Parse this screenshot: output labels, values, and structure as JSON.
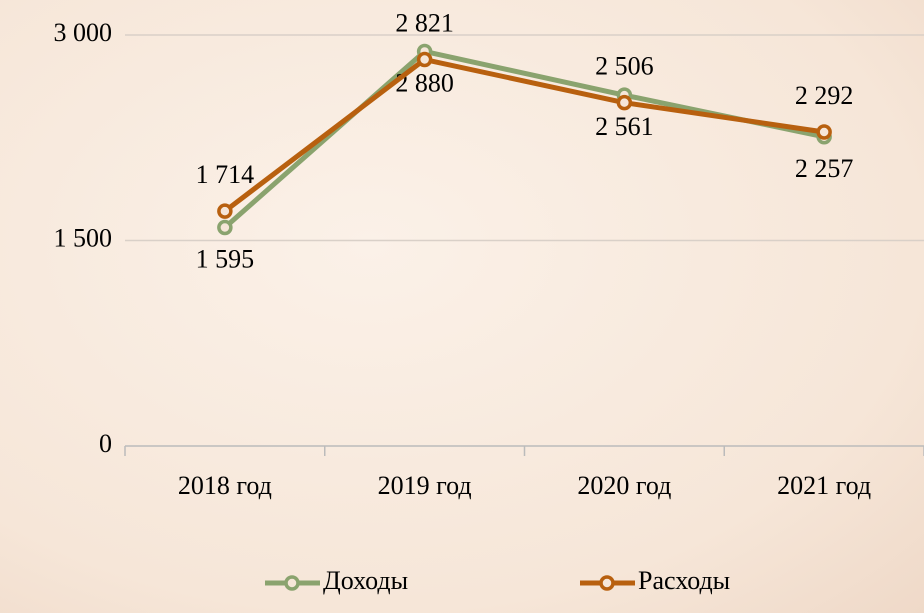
{
  "chart_data": {
    "type": "line",
    "categories": [
      "2018 год",
      "2019 год",
      "2020 год",
      "2021 год"
    ],
    "series": [
      {
        "name": "Доходы",
        "color": "#8aa36e",
        "values": [
          1595,
          2880,
          2561,
          2257
        ],
        "value_labels": [
          "1 595",
          "2 880",
          "2 561",
          "2 257"
        ]
      },
      {
        "name": "Расходы",
        "color": "#b8600f",
        "values": [
          1714,
          2821,
          2506,
          2292
        ],
        "value_labels": [
          "1 714",
          "2 821",
          "2 506",
          "2 292"
        ]
      }
    ],
    "ylim": [
      0,
      3000
    ],
    "yticks": [
      0,
      {
        "value": 1500,
        "label": "1 500"
      },
      {
        "value": 3000,
        "label": "3 000"
      }
    ],
    "grid": true
  }
}
